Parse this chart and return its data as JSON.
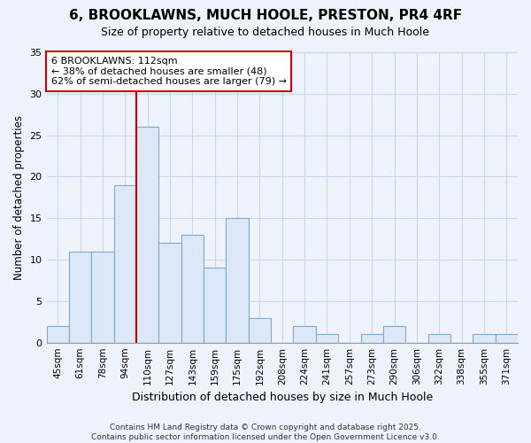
{
  "title_line1": "6, BROOKLAWNS, MUCH HOOLE, PRESTON, PR4 4RF",
  "title_line2": "Size of property relative to detached houses in Much Hoole",
  "xlabel": "Distribution of detached houses by size in Much Hoole",
  "ylabel": "Number of detached properties",
  "categories": [
    "45sqm",
    "61sqm",
    "78sqm",
    "94sqm",
    "110sqm",
    "127sqm",
    "143sqm",
    "159sqm",
    "175sqm",
    "192sqm",
    "208sqm",
    "224sqm",
    "241sqm",
    "257sqm",
    "273sqm",
    "290sqm",
    "306sqm",
    "322sqm",
    "338sqm",
    "355sqm",
    "371sqm"
  ],
  "values": [
    2,
    11,
    11,
    19,
    26,
    12,
    13,
    9,
    15,
    3,
    0,
    2,
    1,
    0,
    1,
    2,
    0,
    1,
    0,
    1,
    1
  ],
  "highlight_index": 4,
  "bar_fill_color": "#dce8f8",
  "bar_edge_color": "#7aaad0",
  "highlight_bar_edge": "#cc0000",
  "vline_color": "#cc0000",
  "annotation_text": "6 BROOKLAWNS: 112sqm\n← 38% of detached houses are smaller (48)\n62% of semi-detached houses are larger (79) →",
  "annotation_box_color": "#ffffff",
  "annotation_box_edge": "#cc0000",
  "ylim": [
    0,
    35
  ],
  "yticks": [
    0,
    5,
    10,
    15,
    20,
    25,
    30,
    35
  ],
  "grid_color": "#c8d8ec",
  "background_color": "#eef2fb",
  "title_fontsize": 11,
  "subtitle_fontsize": 9,
  "footer_line1": "Contains HM Land Registry data © Crown copyright and database right 2025.",
  "footer_line2": "Contains public sector information licensed under the Open Government Licence v3.0."
}
